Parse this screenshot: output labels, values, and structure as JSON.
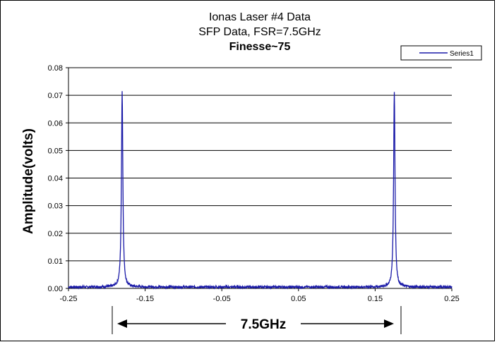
{
  "chart_data": {
    "type": "line",
    "title": [
      "Ionas Laser #4 Data",
      "SFP Data, FSR=7.5GHz",
      "Finesse~75"
    ],
    "xlabel": "",
    "ylabel": "Amplitude(volts)",
    "xlim": [
      -0.25,
      0.25
    ],
    "ylim": [
      0,
      0.08
    ],
    "x_ticks": [
      "-0.25",
      "-0.15",
      "-0.05",
      "0.05",
      "0.15",
      "0.25"
    ],
    "y_ticks": [
      "0.00",
      "0.01",
      "0.02",
      "0.03",
      "0.04",
      "0.05",
      "0.06",
      "0.07",
      "0.08"
    ],
    "grid": "horizontal major gridlines",
    "legend": {
      "position": "top-right",
      "entries": [
        "Series1"
      ]
    },
    "annotation": {
      "text": "7.5GHz",
      "from_x": -0.18,
      "to_x": 0.175
    },
    "series": [
      {
        "name": "Series1",
        "color": "#1a1aa8",
        "peaks": [
          {
            "x": -0.18,
            "y": 0.071
          },
          {
            "x": 0.175,
            "y": 0.071
          }
        ],
        "baseline": 0.0005
      }
    ]
  }
}
